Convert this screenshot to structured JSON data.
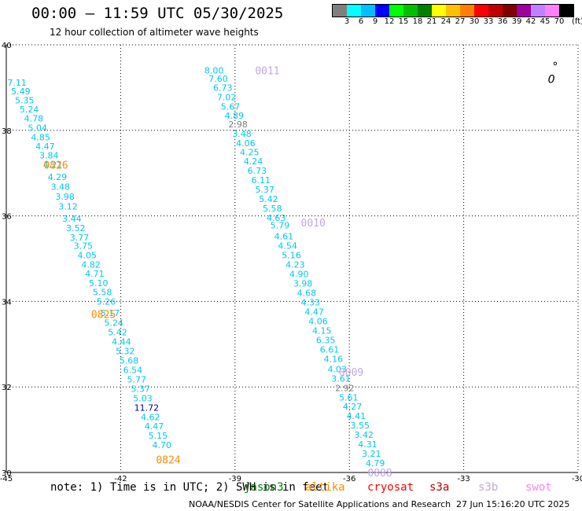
{
  "chart_data": {
    "type": "scatter",
    "title": "00:00 — 11:59 UTC 05/30/2025",
    "subtitle": "12 hour collection of altimeter wave heights",
    "xlim": [
      -45,
      -30
    ],
    "ylim": [
      30,
      40
    ],
    "xticks": [
      -45,
      -42,
      -39,
      -36,
      -33,
      -30
    ],
    "yticks": [
      30,
      32,
      34,
      36,
      38,
      40
    ],
    "grid": true,
    "colorbar": {
      "ticks": [
        "3",
        "6",
        "9",
        "12",
        "15",
        "18",
        "21",
        "24",
        "27",
        "30",
        "33",
        "36",
        "39",
        "42",
        "45",
        "70"
      ],
      "unit": "(ft)",
      "colors": [
        "#7f7f7f",
        "#00ffff",
        "#00bfff",
        "#0000ff",
        "#00ff00",
        "#00c000",
        "#008000",
        "#ffff00",
        "#ffc000",
        "#ff8000",
        "#ff0000",
        "#c00000",
        "#800000",
        "#a000a0",
        "#c080ff",
        "#ff80ff",
        "#000000"
      ]
    },
    "passes": [
      {
        "label": "0826",
        "label_color": "#ff8c00",
        "label_pos": [
          -43.7,
          37.2
        ],
        "points": [
          {
            "x": -44.72,
            "y": 39.12,
            "v": "7.11",
            "c": "#00c8e8"
          },
          {
            "x": -44.62,
            "y": 38.92,
            "v": "5.49",
            "c": "#00c8e8"
          },
          {
            "x": -44.52,
            "y": 38.7,
            "v": "5.35",
            "c": "#00c8e8"
          },
          {
            "x": -44.4,
            "y": 38.49,
            "v": "5.24",
            "c": "#00c8e8"
          },
          {
            "x": -44.28,
            "y": 38.28,
            "v": "4.78",
            "c": "#00c8e8"
          },
          {
            "x": -44.18,
            "y": 38.06,
            "v": "5.04",
            "c": "#00c8e8"
          },
          {
            "x": -44.1,
            "y": 37.84,
            "v": "4.85",
            "c": "#00c8e8"
          },
          {
            "x": -43.98,
            "y": 37.63,
            "v": "4.47",
            "c": "#00c8e8"
          },
          {
            "x": -43.88,
            "y": 37.42,
            "v": "3.84",
            "c": "#00c8e8"
          },
          {
            "x": -43.78,
            "y": 37.2,
            "v": "4.21",
            "c": "#00c8e8"
          },
          {
            "x": -43.66,
            "y": 36.91,
            "v": "4.29",
            "c": "#00c8e8"
          },
          {
            "x": -43.58,
            "y": 36.68,
            "v": "3.48",
            "c": "#00c8e8"
          },
          {
            "x": -43.46,
            "y": 36.45,
            "v": "3.98",
            "c": "#00c8e8"
          },
          {
            "x": -43.38,
            "y": 36.22,
            "v": "3.12",
            "c": "#00c8e8"
          }
        ]
      },
      {
        "label": "0825",
        "label_color": "#ff8c00",
        "label_pos": [
          -42.45,
          33.7
        ],
        "points": [
          {
            "x": -43.28,
            "y": 35.94,
            "v": "3.44",
            "c": "#00c8e8"
          },
          {
            "x": -43.18,
            "y": 35.72,
            "v": "3.52",
            "c": "#00c8e8"
          },
          {
            "x": -43.08,
            "y": 35.5,
            "v": "3.77",
            "c": "#00c8e8"
          },
          {
            "x": -42.98,
            "y": 35.3,
            "v": "3.75",
            "c": "#00c8e8"
          },
          {
            "x": -42.88,
            "y": 35.08,
            "v": "4.05",
            "c": "#00c8e8"
          },
          {
            "x": -42.78,
            "y": 34.86,
            "v": "4.82",
            "c": "#00c8e8"
          },
          {
            "x": -42.68,
            "y": 34.65,
            "v": "4.71",
            "c": "#00c8e8"
          },
          {
            "x": -42.58,
            "y": 34.43,
            "v": "5.10",
            "c": "#00c8e8"
          },
          {
            "x": -42.48,
            "y": 34.22,
            "v": "5.58",
            "c": "#00c8e8"
          },
          {
            "x": -42.38,
            "y": 34.0,
            "v": "5.26",
            "c": "#00c8e8"
          },
          {
            "x": -42.28,
            "y": 33.73,
            "v": "5.17",
            "c": "#00c8e8"
          },
          {
            "x": -42.18,
            "y": 33.5,
            "v": "5.24",
            "c": "#00c8e8"
          },
          {
            "x": -42.08,
            "y": 33.28,
            "v": "5.42",
            "c": "#00c8e8"
          },
          {
            "x": -41.98,
            "y": 33.06,
            "v": "4.44",
            "c": "#00c8e8"
          },
          {
            "x": -41.88,
            "y": 32.84,
            "v": "5.32",
            "c": "#00c8e8"
          },
          {
            "x": -41.78,
            "y": 32.62,
            "v": "5.68",
            "c": "#00c8e8"
          },
          {
            "x": -41.68,
            "y": 32.4,
            "v": "6.54",
            "c": "#00c8e8"
          },
          {
            "x": -41.58,
            "y": 32.18,
            "v": "5.77",
            "c": "#00c8e8"
          },
          {
            "x": -41.48,
            "y": 31.96,
            "v": "5.37",
            "c": "#00c8e8"
          }
        ]
      },
      {
        "label": "0824",
        "label_color": "#ff8c00",
        "label_pos": [
          -40.75,
          30.3
        ],
        "points": [
          {
            "x": -41.42,
            "y": 31.74,
            "v": "5.03",
            "c": "#00c8e8"
          },
          {
            "x": -41.32,
            "y": 31.52,
            "v": "11.72",
            "c": "#00008b"
          },
          {
            "x": -41.22,
            "y": 31.3,
            "v": "4.62",
            "c": "#00c8e8"
          },
          {
            "x": -41.12,
            "y": 31.08,
            "v": "4.47",
            "c": "#00c8e8"
          },
          {
            "x": -41.02,
            "y": 30.86,
            "v": "5.15",
            "c": "#00c8e8"
          },
          {
            "x": -40.92,
            "y": 30.64,
            "v": "4.70",
            "c": "#00c8e8"
          }
        ]
      },
      {
        "label": "0011",
        "label_color": "#c0a8e8",
        "label_pos": [
          -38.15,
          39.4
        ],
        "points": [
          {
            "x": -39.55,
            "y": 39.4,
            "v": "8.00",
            "c": "#00c8e8"
          },
          {
            "x": -39.44,
            "y": 39.21,
            "v": "7.60",
            "c": "#00c8e8"
          },
          {
            "x": -39.32,
            "y": 39.0,
            "v": "6.73",
            "c": "#00c8e8"
          },
          {
            "x": -39.22,
            "y": 38.78,
            "v": "7.02",
            "c": "#00c8e8"
          },
          {
            "x": -39.12,
            "y": 38.56,
            "v": "5.67",
            "c": "#00c8e8"
          },
          {
            "x": -39.02,
            "y": 38.35,
            "v": "4.89",
            "c": "#00c8e8"
          },
          {
            "x": -38.92,
            "y": 38.14,
            "v": "2.98",
            "c": "#808080"
          },
          {
            "x": -38.82,
            "y": 37.92,
            "v": "3.48",
            "c": "#00c8e8"
          },
          {
            "x": -38.72,
            "y": 37.7,
            "v": "4.06",
            "c": "#00c8e8"
          },
          {
            "x": -38.62,
            "y": 37.49,
            "v": "4.25",
            "c": "#00c8e8"
          },
          {
            "x": -38.52,
            "y": 37.28,
            "v": "4.24",
            "c": "#00c8e8"
          },
          {
            "x": -38.42,
            "y": 37.06,
            "v": "6.73",
            "c": "#00c8e8"
          },
          {
            "x": -38.32,
            "y": 36.84,
            "v": "6.11",
            "c": "#00c8e8"
          },
          {
            "x": -38.22,
            "y": 36.62,
            "v": "5.37",
            "c": "#00c8e8"
          },
          {
            "x": -38.12,
            "y": 36.4,
            "v": "5.42",
            "c": "#00c8e8"
          },
          {
            "x": -38.02,
            "y": 36.18,
            "v": "5.58",
            "c": "#00c8e8"
          },
          {
            "x": -37.92,
            "y": 35.96,
            "v": "4.63",
            "c": "#00c8e8"
          }
        ]
      },
      {
        "label": "0010",
        "label_color": "#c0a8e8",
        "label_pos": [
          -36.95,
          35.85
        ],
        "points": [
          {
            "x": -37.82,
            "y": 35.78,
            "v": "5.79",
            "c": "#00c8e8"
          },
          {
            "x": -37.72,
            "y": 35.52,
            "v": "4.61",
            "c": "#00c8e8"
          },
          {
            "x": -37.62,
            "y": 35.3,
            "v": "4.54",
            "c": "#00c8e8"
          },
          {
            "x": -37.52,
            "y": 35.08,
            "v": "5.16",
            "c": "#00c8e8"
          },
          {
            "x": -37.42,
            "y": 34.86,
            "v": "4.23",
            "c": "#00c8e8"
          },
          {
            "x": -37.32,
            "y": 34.64,
            "v": "4.90",
            "c": "#00c8e8"
          },
          {
            "x": -37.22,
            "y": 34.42,
            "v": "3.98",
            "c": "#00c8e8"
          },
          {
            "x": -37.12,
            "y": 34.2,
            "v": "4.68",
            "c": "#00c8e8"
          },
          {
            "x": -37.02,
            "y": 33.98,
            "v": "4.33",
            "c": "#00c8e8"
          },
          {
            "x": -36.92,
            "y": 33.76,
            "v": "4.47",
            "c": "#00c8e8"
          },
          {
            "x": -36.82,
            "y": 33.54,
            "v": "4.06",
            "c": "#00c8e8"
          },
          {
            "x": -36.72,
            "y": 33.32,
            "v": "4.15",
            "c": "#00c8e8"
          },
          {
            "x": -36.62,
            "y": 33.1,
            "v": "6.35",
            "c": "#00c8e8"
          },
          {
            "x": -36.52,
            "y": 32.88,
            "v": "6.61",
            "c": "#00c8e8"
          },
          {
            "x": -36.42,
            "y": 32.66,
            "v": "4.16",
            "c": "#00c8e8"
          }
        ]
      },
      {
        "label": "0009",
        "label_color": "#c0a8e8",
        "label_pos": [
          -35.95,
          32.35
        ],
        "points": [
          {
            "x": -36.32,
            "y": 32.42,
            "v": "4.03",
            "c": "#00c8e8"
          },
          {
            "x": -36.22,
            "y": 32.2,
            "v": "3.61",
            "c": "#00c8e8"
          },
          {
            "x": -36.12,
            "y": 31.98,
            "v": "2.92",
            "c": "#808080"
          },
          {
            "x": -36.02,
            "y": 31.76,
            "v": "5.61",
            "c": "#00c8e8"
          },
          {
            "x": -35.92,
            "y": 31.54,
            "v": "4.27",
            "c": "#00c8e8"
          },
          {
            "x": -35.82,
            "y": 31.32,
            "v": "4.41",
            "c": "#00c8e8"
          },
          {
            "x": -35.72,
            "y": 31.1,
            "v": "3.55",
            "c": "#00c8e8"
          },
          {
            "x": -35.62,
            "y": 30.88,
            "v": "3.42",
            "c": "#00c8e8"
          },
          {
            "x": -35.52,
            "y": 30.66,
            "v": "4.31",
            "c": "#00c8e8"
          },
          {
            "x": -35.42,
            "y": 30.44,
            "v": "3.21",
            "c": "#00c8e8"
          }
        ]
      },
      {
        "label": "0008",
        "label_color": "#c0a8e8",
        "label_pos": [
          -35.2,
          30.0
        ],
        "points": [
          {
            "x": -35.32,
            "y": 30.22,
            "v": "4.79",
            "c": "#00c8e8"
          }
        ]
      }
    ],
    "markers": [
      {
        "x": -30.6,
        "y": 39.5,
        "text": "°",
        "color": "#000000"
      },
      {
        "x": -30.7,
        "y": 39.2,
        "text": "0",
        "color": "#000000"
      }
    ]
  },
  "note": {
    "text": "note:  1) Time is in UTC; 2) SWH is in feet",
    "satellites": [
      {
        "name": "jason3",
        "color": "#008000"
      },
      {
        "name": "altika",
        "color": "#ff8c00"
      },
      {
        "name": "cryosat",
        "color": "#ff0000"
      },
      {
        "name": "s3a",
        "color": "#c00000"
      },
      {
        "name": "s3b",
        "color": "#c0a8e8"
      },
      {
        "name": "swot",
        "color": "#ff80ff"
      }
    ]
  },
  "credit": {
    "org": "NOAA/NESDIS Center for Satellite Applications and Research",
    "date": "27 Jun 15:16:20 UTC 2025"
  }
}
